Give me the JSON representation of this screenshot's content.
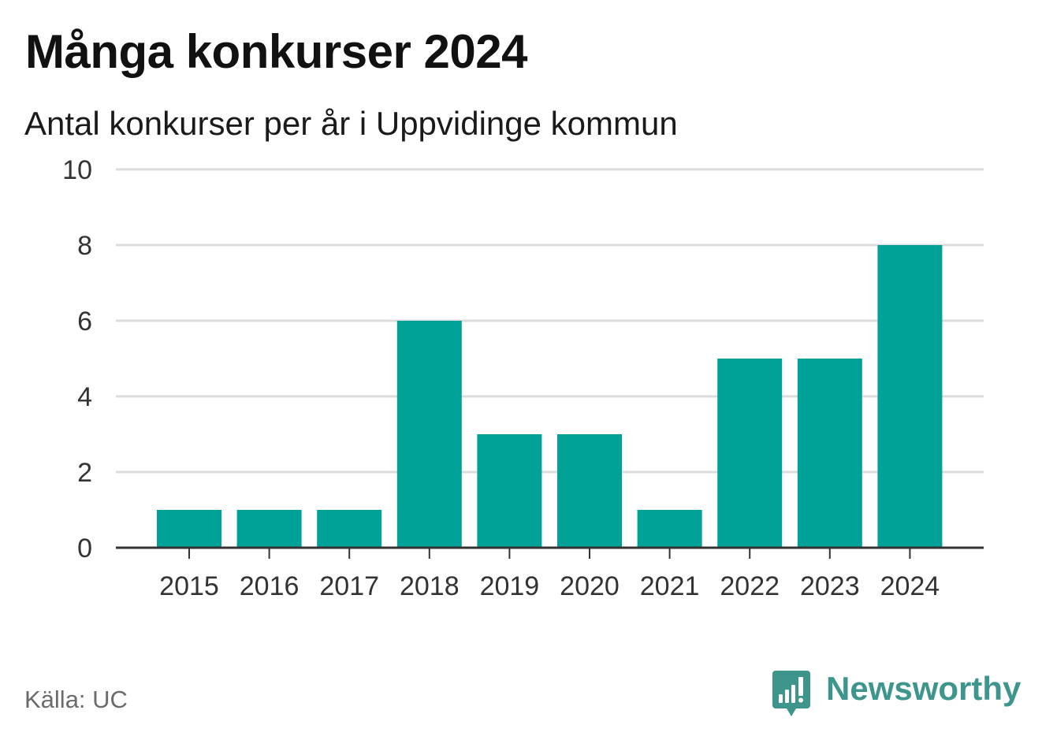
{
  "title": "Många konkurser 2024",
  "subtitle": "Antal konkurser per år i Uppvidinge kommun",
  "source": "Källa: UC",
  "brand": {
    "name": "Newsworthy",
    "icon": "newsworthy-logo-icon",
    "color": "#3d958c"
  },
  "colors": {
    "bar": "#00a298",
    "grid": "#dcdcdc",
    "axis": "#333333"
  },
  "chart_data": {
    "type": "bar",
    "categories": [
      "2015",
      "2016",
      "2017",
      "2018",
      "2019",
      "2020",
      "2021",
      "2022",
      "2023",
      "2024"
    ],
    "values": [
      1,
      1,
      1,
      6,
      3,
      3,
      1,
      5,
      5,
      8
    ],
    "title": "Många konkurser 2024",
    "subtitle": "Antal konkurser per år i Uppvidinge kommun",
    "ylim": [
      0,
      10
    ],
    "yticks": [
      "0",
      "2",
      "4",
      "6",
      "8",
      "10"
    ],
    "grid": true,
    "legend": "none"
  }
}
